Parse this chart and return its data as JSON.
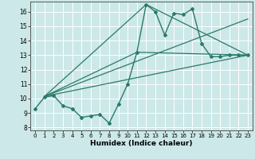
{
  "xlabel": "Humidex (Indice chaleur)",
  "bg_color": "#cce8e8",
  "grid_color": "#ffffff",
  "line_color": "#2a7a6a",
  "xlim": [
    -0.5,
    23.5
  ],
  "ylim": [
    7.8,
    16.7
  ],
  "yticks": [
    8,
    9,
    10,
    11,
    12,
    13,
    14,
    15,
    16
  ],
  "xticks": [
    0,
    1,
    2,
    3,
    4,
    5,
    6,
    7,
    8,
    9,
    10,
    11,
    12,
    13,
    14,
    15,
    16,
    17,
    18,
    19,
    20,
    21,
    22,
    23
  ],
  "main_x": [
    0,
    1,
    2,
    3,
    4,
    5,
    6,
    7,
    8,
    9,
    10,
    11,
    12,
    13,
    14,
    15,
    16,
    17,
    18,
    19,
    20,
    21,
    22,
    23
  ],
  "main_y": [
    9.3,
    10.1,
    10.2,
    9.5,
    9.3,
    8.7,
    8.8,
    8.9,
    8.3,
    9.6,
    11.0,
    13.2,
    16.5,
    16.0,
    14.4,
    15.9,
    15.8,
    16.2,
    13.8,
    12.9,
    12.9,
    13.0,
    13.0,
    13.0
  ],
  "line1_x": [
    1,
    23
  ],
  "line1_y": [
    10.15,
    13.0
  ],
  "line2_x": [
    1,
    23
  ],
  "line2_y": [
    10.15,
    13.0
  ],
  "line3_x": [
    1,
    11,
    23
  ],
  "line3_y": [
    10.15,
    13.2,
    13.0
  ],
  "line4_x": [
    1,
    12,
    23
  ],
  "line4_y": [
    10.15,
    16.5,
    13.0
  ],
  "line5_x": [
    1,
    23
  ],
  "line5_y": [
    10.15,
    15.5
  ]
}
